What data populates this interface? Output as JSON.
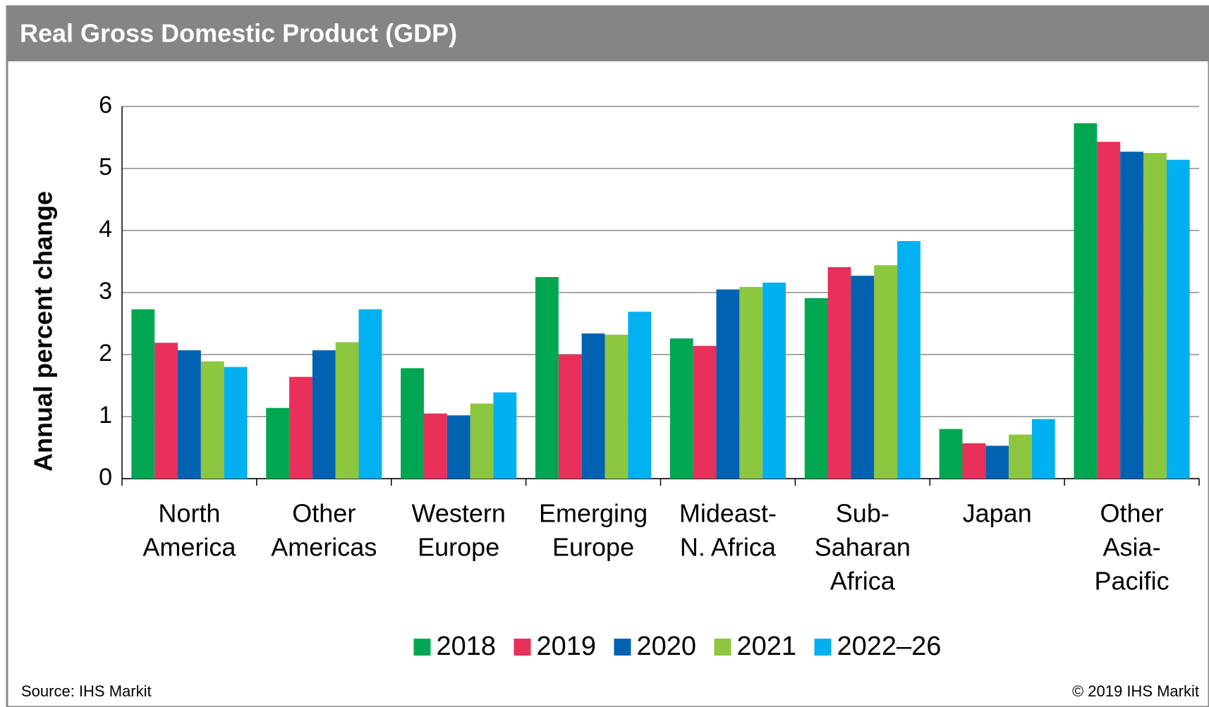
{
  "chart_data": {
    "type": "bar",
    "title": "Real Gross Domestic Product (GDP)",
    "y_label": "Annual percent change",
    "categories": [
      [
        "North",
        "America"
      ],
      [
        "Other",
        "Americas"
      ],
      [
        "Western",
        "Europe"
      ],
      [
        "Emerging",
        "Europe"
      ],
      [
        "Mideast-",
        "N. Africa"
      ],
      [
        "Sub-",
        "Saharan",
        "Africa"
      ],
      [
        "Japan"
      ],
      [
        "Other",
        "Asia-",
        "Pacific"
      ]
    ],
    "series": [
      {
        "name": "2018",
        "color": "#00a651",
        "values": [
          2.73,
          1.14,
          1.78,
          3.25,
          2.26,
          2.91,
          0.8,
          5.73
        ]
      },
      {
        "name": "2019",
        "color": "#e8305a",
        "values": [
          2.19,
          1.64,
          1.05,
          2.0,
          2.14,
          3.41,
          0.57,
          5.43
        ]
      },
      {
        "name": "2020",
        "color": "#0062b1",
        "values": [
          2.07,
          2.07,
          1.02,
          2.34,
          3.05,
          3.27,
          0.53,
          5.27
        ]
      },
      {
        "name": "2021",
        "color": "#8dc63f",
        "values": [
          1.89,
          2.2,
          1.21,
          2.32,
          3.09,
          3.44,
          0.71,
          5.25
        ]
      },
      {
        "name": "2022–26",
        "color": "#00b0f0",
        "values": [
          1.8,
          2.73,
          1.39,
          2.69,
          3.16,
          3.83,
          0.96,
          5.14
        ]
      }
    ],
    "ylim": [
      0,
      6
    ],
    "yticks": [
      0,
      1,
      2,
      3,
      4,
      5,
      6
    ],
    "grid": true,
    "source": "Source: IHS Markit",
    "copyright": "© 2019 IHS Markit"
  }
}
